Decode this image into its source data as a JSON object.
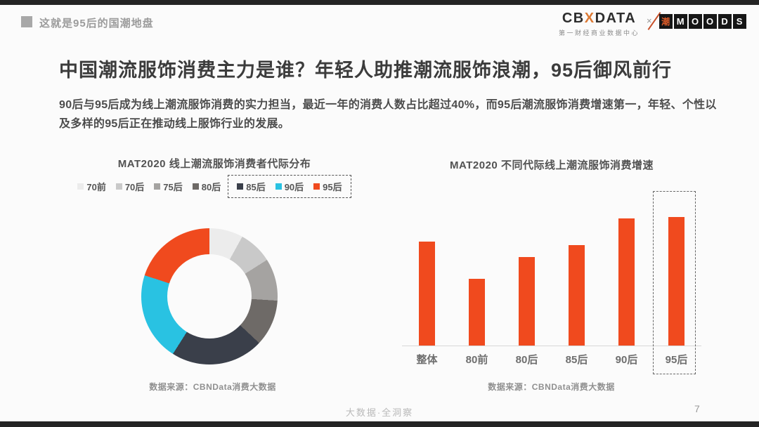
{
  "page": {
    "header": {
      "section_label": "这就是95后的国潮地盘"
    },
    "logos": {
      "cbn_part1": "CB",
      "cbn_x": "X",
      "cbn_part2": "DATA",
      "cbn_subtitle": "第一财经商业数据中心",
      "separator": "×",
      "moods_blocks": [
        "潮",
        "M",
        "O",
        "O",
        "D",
        "S"
      ]
    },
    "title": "中国潮流服饰消费主力是谁？年轻人助推潮流服饰浪潮，95后御风前行",
    "subtitle": "90后与95后成为线上潮流服饰消费的实力担当，最近一年的消费人数占比超过40%，而95后潮流服饰消费增速第一，年轻、个性以及多样的95后正在推动线上服饰行业的发展。",
    "footer": {
      "tagline": "大数据·全洞察",
      "page_number": "7"
    }
  },
  "colors": {
    "accent_orange": "#f04a1e",
    "cyan": "#29c2e2",
    "dark_slate": "#3a3f4a",
    "strip_black": "#242424",
    "heading_gray": "#3c3c3c"
  },
  "chart_data": [
    {
      "type": "pie",
      "donut": true,
      "title": "MAT2020 线上潮流服饰消费者代际分布",
      "legend_position": "top",
      "legend_boxed_from": 4,
      "slices": [
        {
          "label": "70前",
          "value": 8,
          "color": "#ececec"
        },
        {
          "label": "70后",
          "value": 8,
          "color": "#c9c9c9"
        },
        {
          "label": "75后",
          "value": 10,
          "color": "#a5a3a1"
        },
        {
          "label": "80后",
          "value": 11,
          "color": "#6e6a67"
        },
        {
          "label": "85后",
          "value": 22,
          "color": "#3a3f4a"
        },
        {
          "label": "90后",
          "value": 21,
          "color": "#29c2e2"
        },
        {
          "label": "95后",
          "value": 20,
          "color": "#f04a1e"
        }
      ],
      "source": "数据来源：CBNData消费大数据"
    },
    {
      "type": "bar",
      "title": "MAT2020 不同代际线上潮流服饰消费增速",
      "categories": [
        "整体",
        "80前",
        "80后",
        "85后",
        "90后",
        "95后"
      ],
      "values": [
        81,
        52,
        69,
        78,
        99,
        100
      ],
      "ylim": [
        0,
        100
      ],
      "grid": false,
      "bar_color": "#f04a1e",
      "highlight_category": "95后",
      "highlight_style": "dashed-box",
      "source": "数据来源：CBNData消费大数据"
    }
  ]
}
